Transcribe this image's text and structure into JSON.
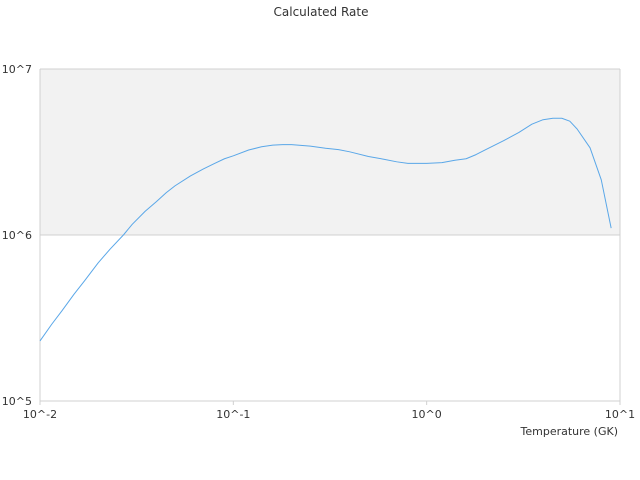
{
  "chart_data": {
    "type": "line",
    "title": "Calculated Rate",
    "xlabel": "Temperature (GK)",
    "ylabel": "",
    "x_scale": "log",
    "y_scale": "log",
    "xlim": [
      0.01,
      10
    ],
    "ylim": [
      100000,
      10000000
    ],
    "x_ticks": [
      {
        "value": 0.01,
        "label": "10^-2"
      },
      {
        "value": 0.1,
        "label": "10^-1"
      },
      {
        "value": 1,
        "label": "10^0"
      },
      {
        "value": 10,
        "label": "10^1"
      }
    ],
    "y_ticks": [
      {
        "value": 100000,
        "label": "10^5"
      },
      {
        "value": 1000000,
        "label": "10^6"
      },
      {
        "value": 10000000,
        "label": "10^7"
      }
    ],
    "grid": false,
    "shaded_band": {
      "y_from": 1000000,
      "y_to": 10000000,
      "color": "#f2f2f2"
    },
    "colors": {
      "line": "#5aa7e8",
      "axis": "#d0d0d0",
      "band": "#f2f2f2"
    },
    "series": [
      {
        "color": "#5aa7e8",
        "x": [
          0.01,
          0.0115,
          0.013,
          0.015,
          0.017,
          0.02,
          0.023,
          0.027,
          0.03,
          0.035,
          0.04,
          0.045,
          0.05,
          0.06,
          0.07,
          0.08,
          0.09,
          0.1,
          0.12,
          0.14,
          0.16,
          0.18,
          0.2,
          0.25,
          0.3,
          0.35,
          0.4,
          0.5,
          0.6,
          0.7,
          0.8,
          0.9,
          1.0,
          1.2,
          1.4,
          1.6,
          1.8,
          2.0,
          2.5,
          3.0,
          3.5,
          4.0,
          4.5,
          5.0,
          5.5,
          6.0,
          7.0,
          8.0,
          9.0
        ],
        "y": [
          230000,
          290000,
          350000,
          440000,
          530000,
          680000,
          820000,
          1000000,
          1160000,
          1390000,
          1590000,
          1800000,
          1980000,
          2270000,
          2500000,
          2700000,
          2880000,
          3000000,
          3250000,
          3400000,
          3480000,
          3500000,
          3500000,
          3430000,
          3330000,
          3270000,
          3170000,
          2970000,
          2860000,
          2760000,
          2700000,
          2700000,
          2700000,
          2730000,
          2820000,
          2880000,
          3050000,
          3250000,
          3700000,
          4150000,
          4650000,
          4950000,
          5050000,
          5050000,
          4850000,
          4350000,
          3350000,
          2150000,
          1100000
        ]
      }
    ]
  }
}
